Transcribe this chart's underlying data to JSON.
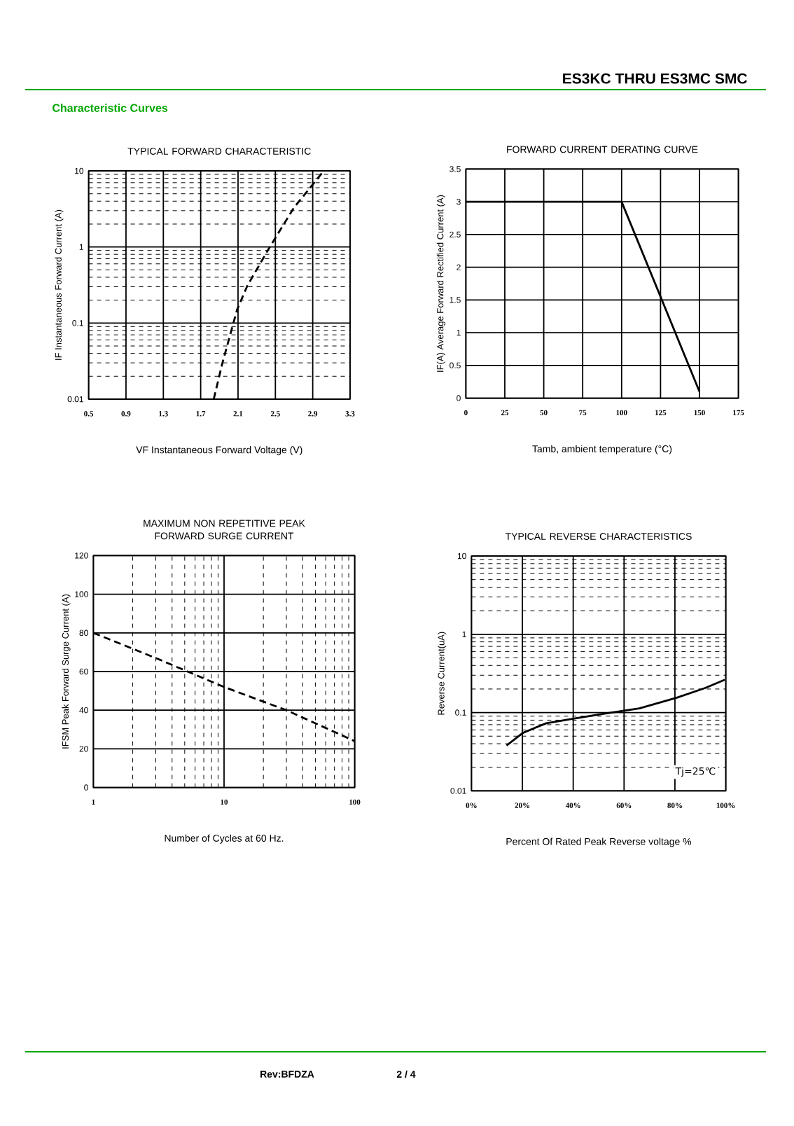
{
  "chart_data": [
    {
      "type": "other",
      "title": "ES3KC THRU ES3MC  SMC",
      "subtitle": "Characteristic Curves",
      "annotations": [
        "Rev:BFDZA",
        "2 / 4"
      ]
    },
    {
      "type": "line",
      "title": "TYPICAL FORWARD CHARACTERISTIC",
      "xlabel": "VF  Instantaneous Forward Voltage (V)",
      "ylabel": "IF Instantaneous Forward Current (A)",
      "log": "y",
      "grid": true,
      "line_style": "dashed",
      "xlim": [
        0.5,
        3.3
      ],
      "xticks": [
        0.5,
        0.9,
        1.3,
        1.7,
        2.1,
        2.5,
        2.9,
        3.3
      ],
      "ylim": [
        0.01,
        10
      ],
      "yticks": [
        0.01,
        0.1,
        1,
        10
      ],
      "x": [
        1.84,
        1.93,
        2.09,
        2.2,
        2.44,
        2.7,
        3.01
      ],
      "series": [
        {
          "color": "#000000",
          "values": [
            0.01,
            0.029,
            0.15,
            0.31,
            1.0,
            3.3,
            9.7
          ]
        }
      ]
    },
    {
      "type": "line",
      "title": "FORWARD CURRENT DERATING CURVE",
      "xlabel": "Tamb, ambient temperature (°C)",
      "ylabel": "IF(A)  Average Forward Rectified Current (A)",
      "grid": true,
      "line_style": "solid",
      "xlim": [
        0,
        175
      ],
      "xticks": [
        0,
        25,
        50,
        75,
        100,
        125,
        150,
        175
      ],
      "ylim": [
        0,
        3.5
      ],
      "yticks": [
        0,
        0.5,
        1,
        1.5,
        2,
        2.5,
        3,
        3.5
      ],
      "x": [
        0,
        100,
        150
      ],
      "series": [
        {
          "color": "#000000",
          "values": [
            3,
            3,
            0.1
          ]
        }
      ]
    },
    {
      "type": "line",
      "title": "MAXIMUM NON REPETITIVE PEAK FORWARD SURGE CURRENT",
      "xlabel": "Number  of  Cycles at 60 Hz.",
      "ylabel": "IFSM  Peak Forward Surge Current (A)",
      "log": "x",
      "grid": true,
      "line_style": "dashed",
      "xlim": [
        1,
        100
      ],
      "xticks": [
        1,
        10,
        100
      ],
      "ylim": [
        0,
        120
      ],
      "yticks": [
        0,
        20,
        40,
        60,
        80,
        100,
        120
      ],
      "x": [
        1,
        3,
        10,
        30,
        100
      ],
      "series": [
        {
          "color": "#000000",
          "values": [
            80,
            67,
            52,
            40,
            24
          ]
        }
      ]
    },
    {
      "type": "line",
      "title": "TYPICAL REVERSE CHARACTERISTICS",
      "xlabel": "Percent Of Rated Peak Reverse voltage %",
      "ylabel": "Reverse Current(uA)",
      "log": "y",
      "grid": true,
      "line_style": "solid",
      "annotations": [
        "Tj=25℃"
      ],
      "xlim": [
        0,
        100
      ],
      "xticks": [
        {
          "value": 0,
          "label": "0%"
        },
        {
          "value": 20,
          "label": "20%"
        },
        {
          "value": 40,
          "label": "40%"
        },
        {
          "value": 60,
          "label": "60%"
        },
        {
          "value": 80,
          "label": "80%"
        },
        {
          "value": 100,
          "label": "100%"
        }
      ],
      "ylim": [
        0.01,
        10
      ],
      "yticks": [
        0.01,
        0.1,
        1,
        10
      ],
      "x": [
        13.8,
        20.2,
        29.4,
        40.4,
        51.4,
        66,
        80.7,
        91.7,
        99.6
      ],
      "series": [
        {
          "color": "#000000",
          "values": [
            0.038,
            0.055,
            0.073,
            0.084,
            0.096,
            0.113,
            0.155,
            0.205,
            0.262
          ]
        }
      ]
    }
  ]
}
